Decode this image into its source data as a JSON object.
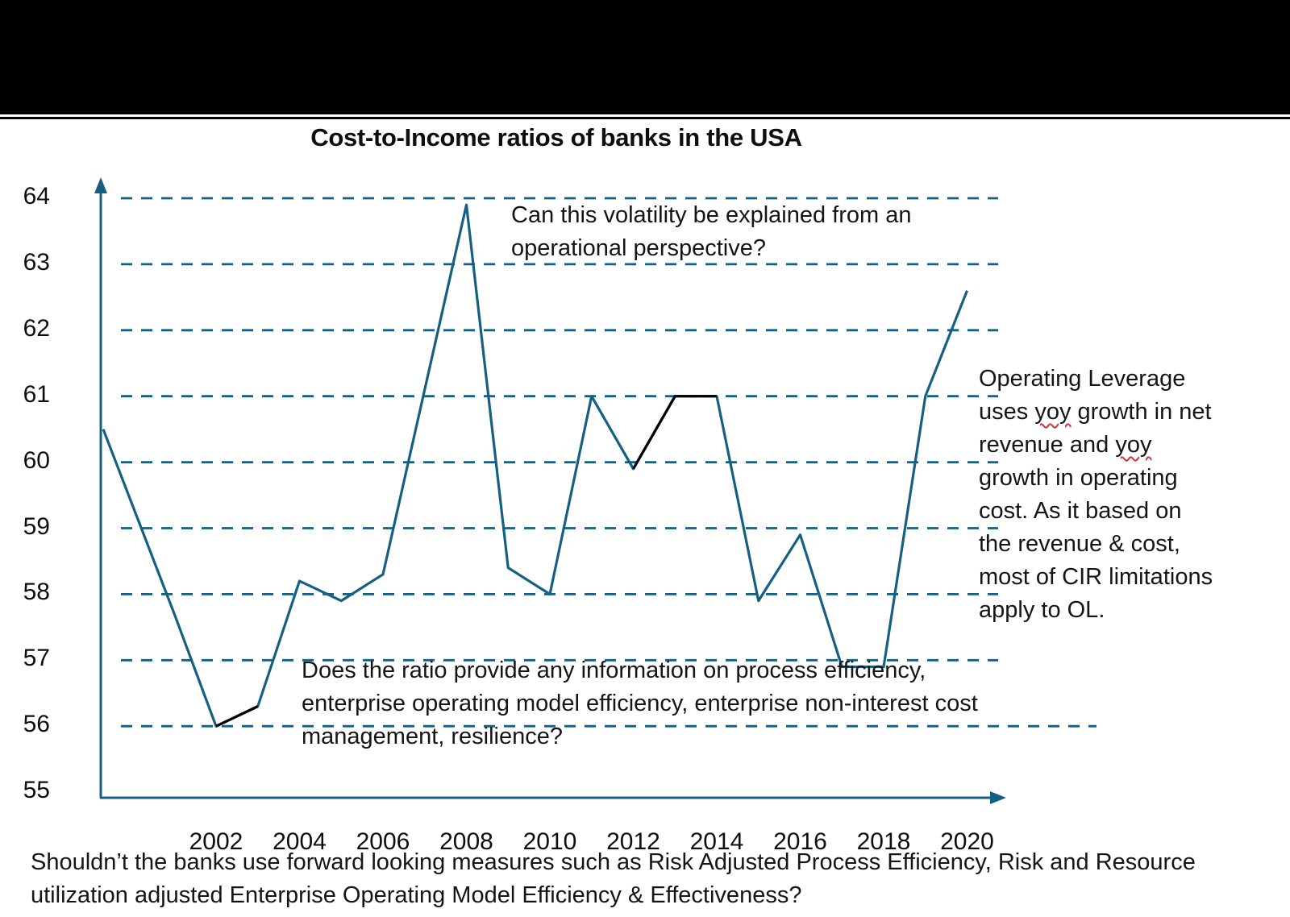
{
  "meta": {
    "background_color": "#ffffff",
    "letterbox_color": "#000000",
    "accent_teal": "#156082",
    "text_color": "#151515",
    "squiggle_color": "#d13438"
  },
  "title": "Cost-to-Income ratios of banks in the USA",
  "chart_data": {
    "type": "line",
    "title": "Cost-to-Income ratios of banks in the USA",
    "xlabel": "",
    "ylabel": "",
    "ylim": [
      55,
      64
    ],
    "yticks": [
      64,
      63,
      62,
      61,
      60,
      59,
      58,
      57,
      56,
      55
    ],
    "xticks": [
      2002,
      2004,
      2006,
      2008,
      2010,
      2012,
      2014,
      2016,
      2018,
      2020
    ],
    "gridlines": {
      "orientation": "horizontal",
      "style": "dashed",
      "at_values": [
        64,
        63,
        62,
        61,
        60,
        59,
        58,
        57,
        56
      ]
    },
    "legend_position": "none",
    "x": [
      2000,
      2001,
      2002,
      2003,
      2004,
      2005,
      2006,
      2007,
      2008,
      2009,
      2010,
      2011,
      2012,
      2013,
      2014,
      2015,
      2016,
      2017,
      2018,
      2019,
      2020
    ],
    "series": [
      {
        "name": "Cost-to-Income ratio (%)",
        "color": "#156082",
        "values": [
          60.5,
          57.7,
          56.0,
          56.3,
          58.2,
          57.9,
          58.3,
          61.1,
          63.9,
          58.4,
          58.0,
          61.0,
          59.9,
          61.0,
          61.0,
          57.9,
          58.9,
          56.9,
          56.9,
          61.0,
          62.6
        ]
      }
    ],
    "highlight_segments": [
      {
        "from_year": 2002,
        "to_year": 2003,
        "color": "#000000"
      },
      {
        "from_year": 2012,
        "to_year": 2014,
        "color": "#000000"
      }
    ]
  },
  "annotations": {
    "volatility": "Can this volatility be explained from an\noperational perspective?",
    "operating_leverage": "Operating Leverage\nuses yoy growth in net\nrevenue and yoy\ngrowth in operating\ncost. As it based on\nthe revenue & cost,\nmost of CIR limitations\napply to OL.",
    "ratio_info": "Does the ratio provide any information on process efficiency,\nenterprise operating model efficiency, enterprise non-interest cost\nmanagement, resilience?",
    "footer_question": "Shouldn’t the banks use forward looking measures such as Risk Adjusted Process Efficiency, Risk and Resource\nutilization adjusted Enterprise Operating Model Efficiency & Effectiveness?"
  },
  "proofing": {
    "squiggle_words": [
      "yoy"
    ]
  }
}
